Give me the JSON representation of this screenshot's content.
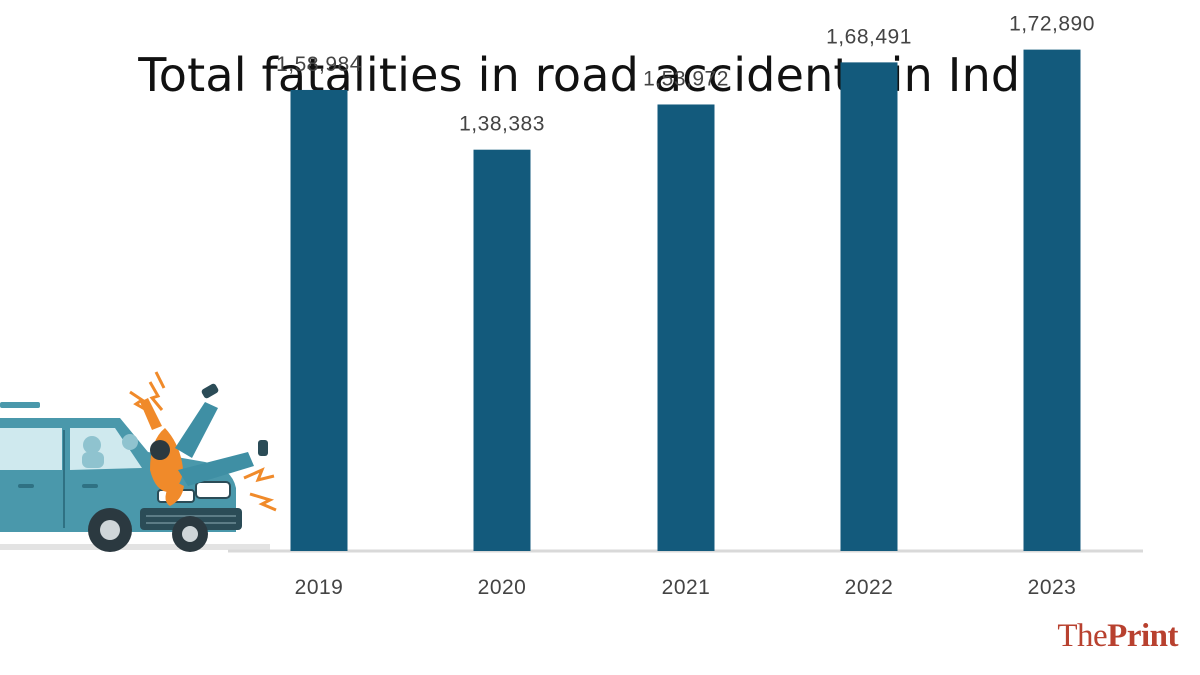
{
  "chart_data": {
    "type": "bar",
    "title": "Total fatalities in road accidents in India",
    "categories": [
      "2019",
      "2020",
      "2021",
      "2022",
      "2023"
    ],
    "values": [
      158984,
      138383,
      153972,
      168491,
      172890
    ],
    "value_labels": [
      "1,58,984",
      "1,38,383",
      "1,53,972",
      "1,68,491",
      "1,72,890"
    ],
    "ylim": [
      0,
      190000
    ],
    "grid": false,
    "legend": "none",
    "bar_color": "#135a7c",
    "baseline_color": "#d9d9d9"
  },
  "branding": {
    "logo_prefix": "The",
    "logo_main": "Print",
    "logo_color": "#b8412f"
  },
  "illustration": {
    "icon": "car-hitting-pedestrian-illustration",
    "car_color": "#4a98ab",
    "jacket_color": "#f08a2a"
  }
}
